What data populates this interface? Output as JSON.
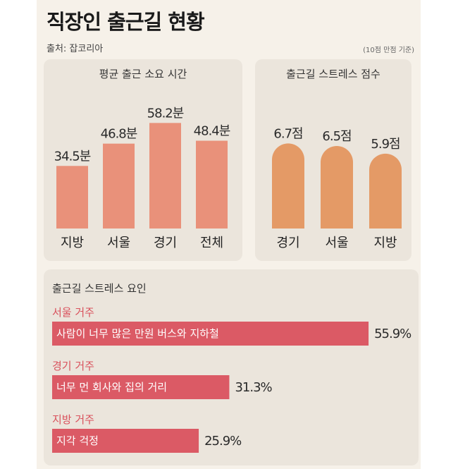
{
  "header": {
    "title": "직장인 출근길 현황",
    "source": "출처: 잡코리아",
    "unit_note": "(10점 만점 기준)"
  },
  "colors": {
    "commute_bar": "#e9917a",
    "stress_bar": "#e49a66",
    "factor_bar": "#db5a65",
    "factor_group_title": "#d9515c"
  },
  "chart_data": [
    {
      "type": "bar",
      "title": "평균 출근 소요 시간",
      "categories": [
        "지방",
        "서울",
        "경기",
        "전체"
      ],
      "values": [
        34.5,
        46.8,
        58.2,
        48.4
      ],
      "value_labels": [
        "34.5분",
        "46.8분",
        "58.2분",
        "48.4분"
      ],
      "unit": "분",
      "ylim": [
        0,
        70
      ],
      "grid": false,
      "legend": "none"
    },
    {
      "type": "bar",
      "title": "출근길 스트레스 점수",
      "categories": [
        "경기",
        "서울",
        "지방"
      ],
      "values": [
        6.7,
        6.5,
        5.9
      ],
      "value_labels": [
        "6.7점",
        "6.5점",
        "5.9점"
      ],
      "unit": "점",
      "ylim": [
        0,
        10
      ],
      "grid": false,
      "legend": "none",
      "bar_shape": "rounded-top"
    },
    {
      "type": "bar",
      "orientation": "horizontal",
      "title": "출근길 스트레스 요인",
      "groups": [
        {
          "name": "서울 거주",
          "category": "사람이 너무 많은 만원 버스와 지하철",
          "value": 55.9,
          "value_label": "55.9%"
        },
        {
          "name": "경기 거주",
          "category": "너무 먼 회사와 집의 거리",
          "value": 31.3,
          "value_label": "31.3%"
        },
        {
          "name": "지방 거주",
          "category": "지각 걱정",
          "value": 25.9,
          "value_label": "25.9%"
        }
      ],
      "unit": "%",
      "xlim": [
        0,
        60
      ],
      "grid": false,
      "legend": "none"
    }
  ]
}
